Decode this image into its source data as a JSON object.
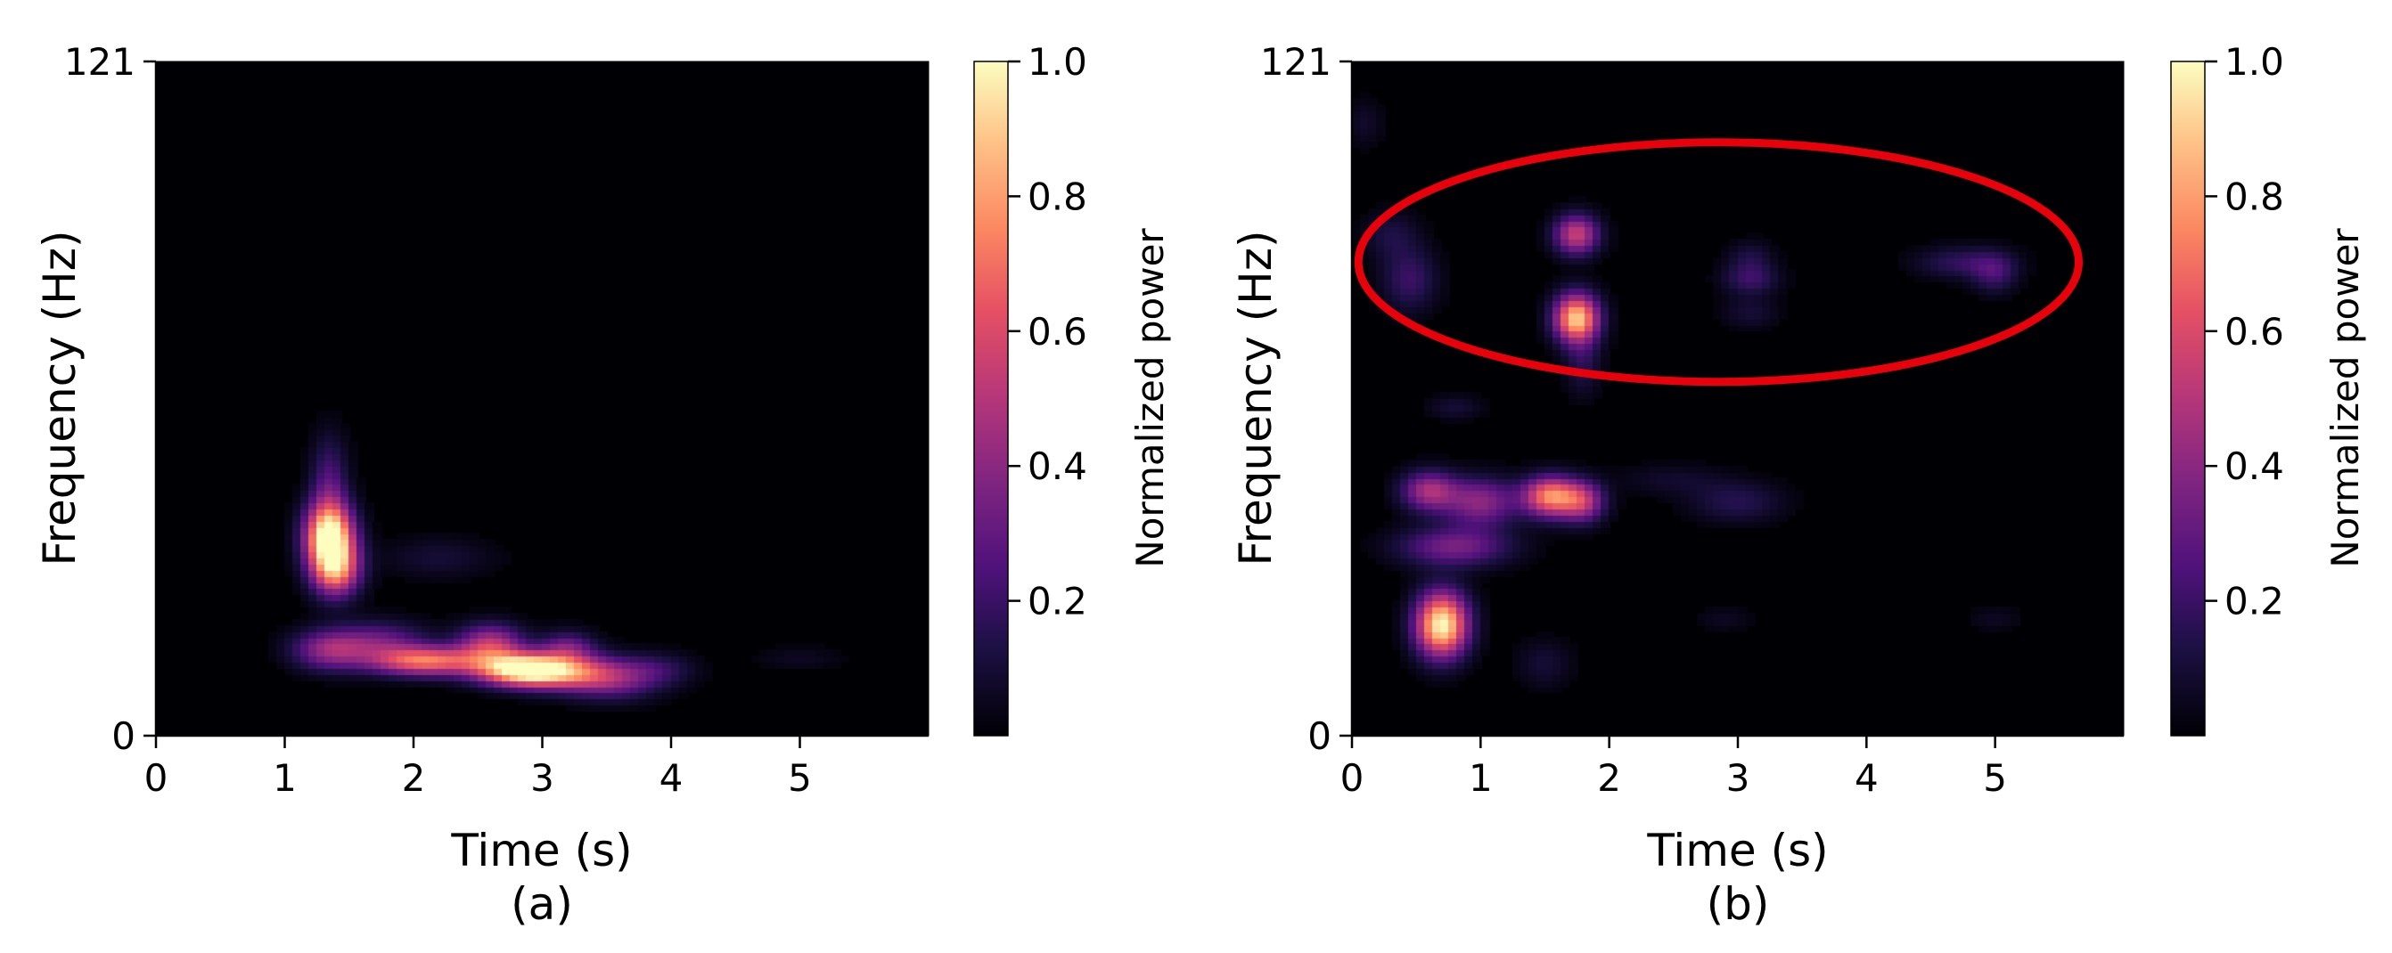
{
  "chart_data": [
    {
      "type": "heatmap",
      "panel_label": "(a)",
      "xlabel": "Time (s)",
      "ylabel": "Frequency (Hz)",
      "xlim": [
        0,
        6
      ],
      "ylim": [
        0,
        121
      ],
      "xticks": [
        "0",
        "1",
        "2",
        "3",
        "4",
        "5"
      ],
      "yticks": [
        "0",
        "121"
      ],
      "colormap": "magma",
      "background": "#000004",
      "colorbar": {
        "label": "Normalized power",
        "ticks": [
          "0.2",
          "0.4",
          "0.6",
          "0.8",
          "1.0"
        ],
        "range": [
          0,
          1
        ]
      },
      "blobs": [
        {
          "t": 1.35,
          "f": 36,
          "st": 0.13,
          "sf": 4,
          "power": 1.0
        },
        {
          "t": 1.4,
          "f": 30,
          "st": 0.13,
          "sf": 3.5,
          "power": 0.7
        },
        {
          "t": 1.35,
          "f": 45,
          "st": 0.1,
          "sf": 6,
          "power": 0.25
        },
        {
          "t": 1.35,
          "f": 15.5,
          "st": 0.2,
          "sf": 2.5,
          "power": 0.4
        },
        {
          "t": 1.75,
          "f": 17,
          "st": 0.25,
          "sf": 2.5,
          "power": 0.3
        },
        {
          "t": 2.1,
          "f": 13.5,
          "st": 0.3,
          "sf": 1.8,
          "power": 0.7
        },
        {
          "t": 2.6,
          "f": 16.5,
          "st": 0.18,
          "sf": 2.5,
          "power": 0.5
        },
        {
          "t": 2.85,
          "f": 12,
          "st": 0.25,
          "sf": 2.0,
          "power": 0.95
        },
        {
          "t": 3.2,
          "f": 11.5,
          "st": 0.28,
          "sf": 2.2,
          "power": 0.5
        },
        {
          "t": 3.55,
          "f": 10,
          "st": 0.25,
          "sf": 2.5,
          "power": 0.3
        },
        {
          "t": 3.2,
          "f": 16,
          "st": 0.15,
          "sf": 2.0,
          "power": 0.3
        },
        {
          "t": 2.2,
          "f": 32,
          "st": 0.3,
          "sf": 2.5,
          "power": 0.1
        },
        {
          "t": 3.9,
          "f": 12,
          "st": 0.2,
          "sf": 2.0,
          "power": 0.15
        },
        {
          "t": 5.0,
          "f": 14,
          "st": 0.25,
          "sf": 1.5,
          "power": 0.06
        }
      ]
    },
    {
      "type": "heatmap",
      "panel_label": "(b)",
      "xlabel": "Time (s)",
      "ylabel": "Frequency (Hz)",
      "xlim": [
        0,
        6
      ],
      "ylim": [
        0,
        121
      ],
      "xticks": [
        "0",
        "1",
        "2",
        "3",
        "4",
        "5"
      ],
      "yticks": [
        "0",
        "121"
      ],
      "colormap": "magma",
      "background": "#000004",
      "colorbar": {
        "label": "Normalized power",
        "ticks": [
          "0.2",
          "0.4",
          "0.6",
          "0.8",
          "1.0"
        ],
        "range": [
          0,
          1
        ]
      },
      "annotation": {
        "shape": "ellipse",
        "color": "#e8000b",
        "center": {
          "t": 2.85,
          "f": 85
        },
        "radii": {
          "t": 2.8,
          "f": 21.5
        }
      },
      "blobs": [
        {
          "t": 0.7,
          "f": 20,
          "st": 0.14,
          "sf": 4,
          "power": 1.0
        },
        {
          "t": 0.6,
          "f": 44,
          "st": 0.15,
          "sf": 2.5,
          "power": 0.45
        },
        {
          "t": 1.0,
          "f": 42,
          "st": 0.2,
          "sf": 3,
          "power": 0.4
        },
        {
          "t": 1.55,
          "f": 43,
          "st": 0.15,
          "sf": 2.5,
          "power": 0.75
        },
        {
          "t": 1.8,
          "f": 42,
          "st": 0.12,
          "sf": 2.5,
          "power": 0.45
        },
        {
          "t": 0.8,
          "f": 34,
          "st": 0.3,
          "sf": 2.5,
          "power": 0.35
        },
        {
          "t": 1.75,
          "f": 75,
          "st": 0.12,
          "sf": 3,
          "power": 0.9
        },
        {
          "t": 1.75,
          "f": 90,
          "st": 0.12,
          "sf": 2.5,
          "power": 0.55
        },
        {
          "t": 1.8,
          "f": 67,
          "st": 0.1,
          "sf": 4,
          "power": 0.15
        },
        {
          "t": 0.45,
          "f": 82,
          "st": 0.15,
          "sf": 4,
          "power": 0.2
        },
        {
          "t": 0.3,
          "f": 90,
          "st": 0.15,
          "sf": 3,
          "power": 0.12
        },
        {
          "t": 3.1,
          "f": 82,
          "st": 0.15,
          "sf": 2,
          "power": 0.2
        },
        {
          "t": 3.1,
          "f": 86,
          "st": 0.12,
          "sf": 2,
          "power": 0.12
        },
        {
          "t": 3.1,
          "f": 76,
          "st": 0.15,
          "sf": 2,
          "power": 0.1
        },
        {
          "t": 4.75,
          "f": 85,
          "st": 0.25,
          "sf": 2,
          "power": 0.18
        },
        {
          "t": 5.0,
          "f": 83,
          "st": 0.12,
          "sf": 2.5,
          "power": 0.2
        },
        {
          "t": 3.0,
          "f": 42,
          "st": 0.25,
          "sf": 2.5,
          "power": 0.15
        },
        {
          "t": 2.5,
          "f": 46,
          "st": 0.3,
          "sf": 2,
          "power": 0.08
        },
        {
          "t": 0.8,
          "f": 59,
          "st": 0.15,
          "sf": 1.5,
          "power": 0.1
        },
        {
          "t": 1.5,
          "f": 13,
          "st": 0.15,
          "sf": 3,
          "power": 0.1
        },
        {
          "t": 0.1,
          "f": 110,
          "st": 0.1,
          "sf": 3,
          "power": 0.08
        },
        {
          "t": 2.9,
          "f": 21,
          "st": 0.15,
          "sf": 1.5,
          "power": 0.06
        },
        {
          "t": 5.0,
          "f": 21,
          "st": 0.15,
          "sf": 1.5,
          "power": 0.06
        }
      ]
    }
  ]
}
